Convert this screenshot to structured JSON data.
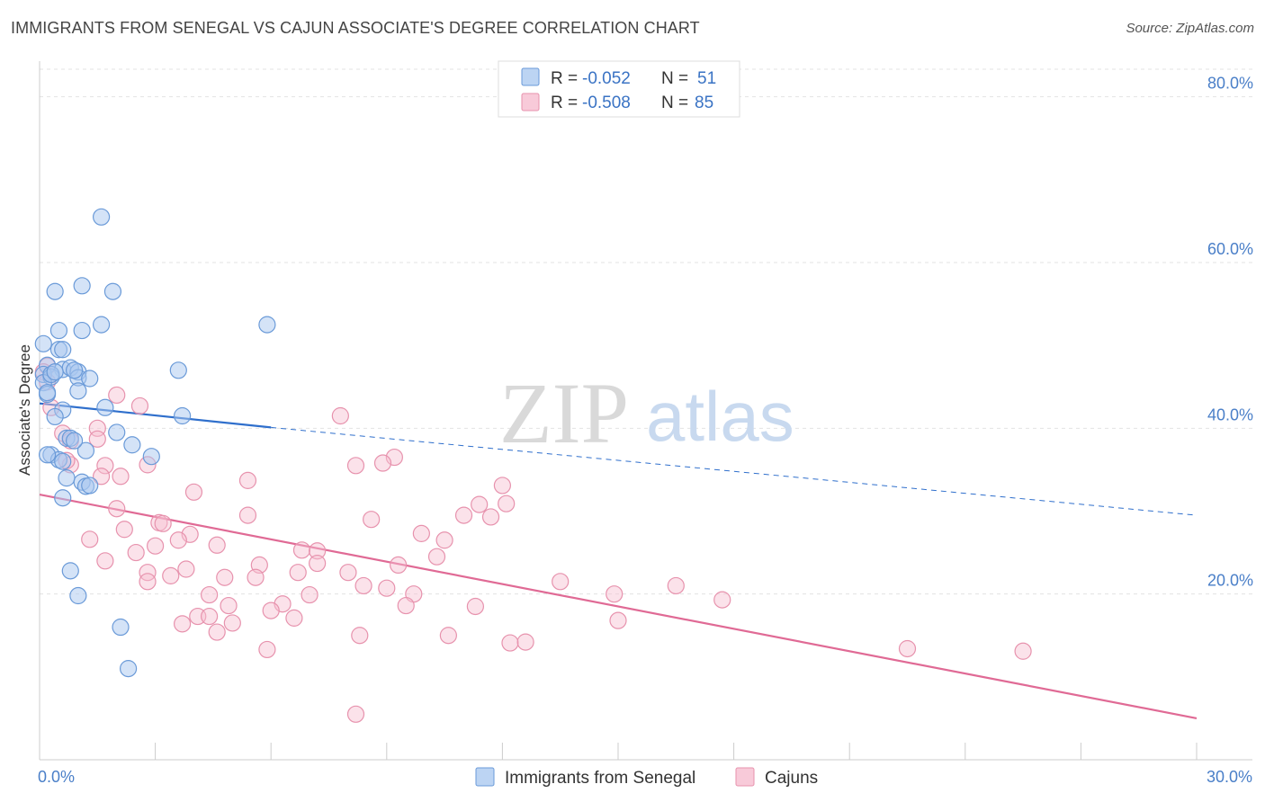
{
  "title": "IMMIGRANTS FROM SENEGAL VS CAJUN ASSOCIATE'S DEGREE CORRELATION CHART",
  "source": "Source: ZipAtlas.com",
  "watermark": {
    "zip": "ZIP",
    "atlas": "atlas"
  },
  "colors": {
    "blue_fill": "#a9c8f0",
    "blue_stroke": "#6a9ad8",
    "blue_line": "#2f6fcc",
    "pink_fill": "#f6bfd0",
    "pink_stroke": "#e792ad",
    "pink_line": "#e06a95",
    "grid": "#e3e3e3",
    "tick_label": "#4a7fc8"
  },
  "legend": {
    "rows": [
      {
        "r_label": "R = ",
        "r_value": "-0.052",
        "n_label": "N = ",
        "n_value": "51"
      },
      {
        "r_label": "R = ",
        "r_value": "-0.508",
        "n_label": "N = ",
        "n_value": "85"
      }
    ]
  },
  "chart_data": {
    "type": "scatter",
    "ylabel": "Associate's Degree",
    "xlim": [
      0,
      30
    ],
    "ylim": [
      0,
      83
    ],
    "x_tick_labels": [
      {
        "value": 0,
        "label": "0.0%"
      },
      {
        "value": 30,
        "label": "30.0%"
      }
    ],
    "y_tick_labels": [
      {
        "value": 20,
        "label": "20.0%"
      },
      {
        "value": 40,
        "label": "40.0%"
      },
      {
        "value": 60,
        "label": "60.0%"
      },
      {
        "value": 80,
        "label": "80.0%"
      }
    ],
    "x_minor_ticks": [
      0,
      3,
      6,
      9,
      12,
      15,
      18,
      21,
      24,
      27,
      30
    ],
    "grid": true,
    "legend_position": "top-center",
    "series": [
      {
        "name": "Immigrants from Senegal",
        "color": "blue",
        "trend": {
          "x0": 0,
          "y0": 43.0,
          "x1": 6.0,
          "y1": 40.1,
          "dashed_to_x": 30,
          "dashed_to_y": 29.5
        },
        "points": [
          [
            1.6,
            65.5
          ],
          [
            0.4,
            56.5
          ],
          [
            1.1,
            57.2
          ],
          [
            1.9,
            56.5
          ],
          [
            0.5,
            51.8
          ],
          [
            1.1,
            51.8
          ],
          [
            1.6,
            52.5
          ],
          [
            5.9,
            52.5
          ],
          [
            0.1,
            50.2
          ],
          [
            0.5,
            49.5
          ],
          [
            0.6,
            49.5
          ],
          [
            0.2,
            47.6
          ],
          [
            0.6,
            47.1
          ],
          [
            0.8,
            47.3
          ],
          [
            1.0,
            46.8
          ],
          [
            0.1,
            46.5
          ],
          [
            0.3,
            46.2
          ],
          [
            1.0,
            46.1
          ],
          [
            1.3,
            46.0
          ],
          [
            3.6,
            47.0
          ],
          [
            0.1,
            45.5
          ],
          [
            1.0,
            44.5
          ],
          [
            0.2,
            44.1
          ],
          [
            0.6,
            42.2
          ],
          [
            1.7,
            42.5
          ],
          [
            0.4,
            41.4
          ],
          [
            3.7,
            41.5
          ],
          [
            2.0,
            39.5
          ],
          [
            0.7,
            38.8
          ],
          [
            0.8,
            38.8
          ],
          [
            2.4,
            38.0
          ],
          [
            1.2,
            37.3
          ],
          [
            0.3,
            36.8
          ],
          [
            2.9,
            36.6
          ],
          [
            0.5,
            36.2
          ],
          [
            0.6,
            36.0
          ],
          [
            0.7,
            34.0
          ],
          [
            1.1,
            33.5
          ],
          [
            1.2,
            33.0
          ],
          [
            1.3,
            33.1
          ],
          [
            0.6,
            31.6
          ],
          [
            0.8,
            22.8
          ],
          [
            1.0,
            19.8
          ],
          [
            2.1,
            16.0
          ],
          [
            2.3,
            11.0
          ],
          [
            0.2,
            36.8
          ],
          [
            0.9,
            38.5
          ],
          [
            0.3,
            46.5
          ],
          [
            0.2,
            44.3
          ],
          [
            0.4,
            46.8
          ],
          [
            0.9,
            47.0
          ]
        ]
      },
      {
        "name": "Cajuns",
        "color": "pink",
        "trend": {
          "x0": 0,
          "y0": 32.0,
          "x1": 30,
          "y1": 5.0
        },
        "points": [
          [
            0.2,
            47.5
          ],
          [
            0.1,
            46.8
          ],
          [
            0.2,
            45.6
          ],
          [
            2.0,
            44.0
          ],
          [
            0.3,
            42.5
          ],
          [
            2.6,
            42.7
          ],
          [
            1.5,
            40.0
          ],
          [
            0.6,
            39.4
          ],
          [
            0.8,
            38.5
          ],
          [
            1.5,
            38.7
          ],
          [
            7.8,
            41.5
          ],
          [
            9.2,
            36.5
          ],
          [
            8.2,
            35.5
          ],
          [
            8.9,
            35.8
          ],
          [
            0.8,
            35.6
          ],
          [
            2.8,
            35.6
          ],
          [
            1.7,
            35.5
          ],
          [
            1.6,
            34.2
          ],
          [
            2.1,
            34.2
          ],
          [
            5.4,
            33.7
          ],
          [
            12.0,
            33.1
          ],
          [
            4.0,
            32.3
          ],
          [
            11.4,
            30.8
          ],
          [
            12.1,
            30.9
          ],
          [
            0.7,
            36.1
          ],
          [
            2.0,
            30.3
          ],
          [
            5.4,
            29.5
          ],
          [
            11.0,
            29.5
          ],
          [
            11.7,
            29.3
          ],
          [
            8.6,
            29.0
          ],
          [
            3.1,
            28.6
          ],
          [
            3.2,
            28.5
          ],
          [
            2.2,
            27.8
          ],
          [
            3.9,
            27.2
          ],
          [
            9.9,
            27.3
          ],
          [
            10.5,
            26.5
          ],
          [
            1.3,
            26.6
          ],
          [
            3.6,
            26.5
          ],
          [
            3.0,
            25.8
          ],
          [
            4.6,
            25.9
          ],
          [
            2.5,
            25.0
          ],
          [
            6.8,
            25.3
          ],
          [
            7.2,
            25.2
          ],
          [
            10.3,
            24.5
          ],
          [
            1.7,
            24.0
          ],
          [
            5.7,
            23.5
          ],
          [
            7.2,
            23.7
          ],
          [
            9.3,
            23.5
          ],
          [
            3.8,
            23.0
          ],
          [
            2.8,
            22.6
          ],
          [
            6.7,
            22.6
          ],
          [
            8.0,
            22.6
          ],
          [
            3.4,
            22.2
          ],
          [
            4.8,
            22.0
          ],
          [
            5.6,
            22.0
          ],
          [
            2.8,
            21.5
          ],
          [
            8.4,
            21.0
          ],
          [
            9.0,
            20.7
          ],
          [
            13.5,
            21.5
          ],
          [
            16.5,
            21.0
          ],
          [
            4.4,
            19.9
          ],
          [
            7.0,
            19.9
          ],
          [
            9.7,
            20.0
          ],
          [
            14.9,
            20.0
          ],
          [
            17.7,
            19.3
          ],
          [
            4.9,
            18.6
          ],
          [
            6.3,
            18.8
          ],
          [
            6.0,
            18.0
          ],
          [
            9.5,
            18.6
          ],
          [
            11.3,
            18.5
          ],
          [
            4.1,
            17.3
          ],
          [
            4.4,
            17.3
          ],
          [
            6.6,
            17.1
          ],
          [
            3.7,
            16.4
          ],
          [
            5.0,
            16.5
          ],
          [
            15.0,
            16.8
          ],
          [
            4.6,
            15.4
          ],
          [
            8.3,
            15.0
          ],
          [
            10.6,
            15.0
          ],
          [
            12.2,
            14.1
          ],
          [
            12.6,
            14.2
          ],
          [
            5.9,
            13.3
          ],
          [
            22.5,
            13.4
          ],
          [
            25.5,
            13.1
          ],
          [
            8.2,
            5.5
          ]
        ]
      }
    ]
  },
  "bottom_legend": [
    {
      "label": "Immigrants from Senegal",
      "color": "blue"
    },
    {
      "label": "Cajuns",
      "color": "pink"
    }
  ]
}
